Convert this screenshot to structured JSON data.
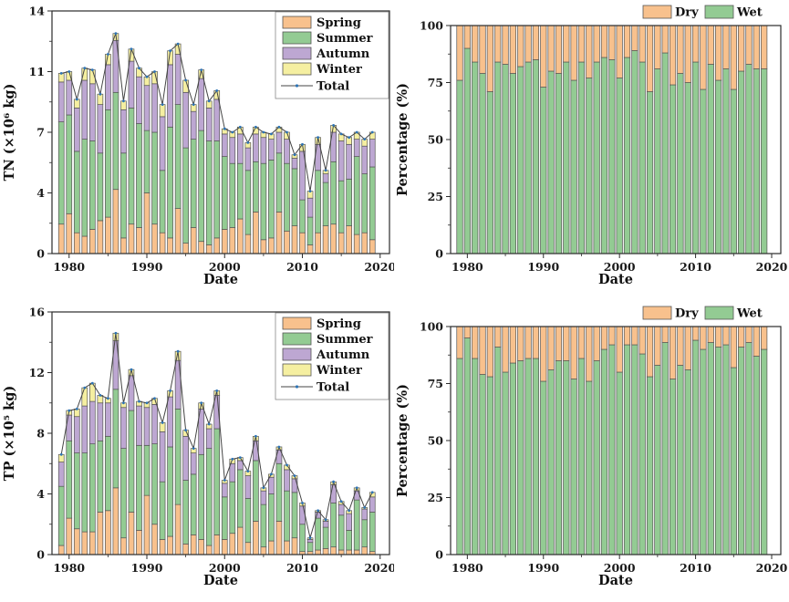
{
  "figure": {
    "background": "#ffffff",
    "palette": {
      "spring": "#f8c18d",
      "summer": "#93cb93",
      "autumn": "#bda7d2",
      "winter": "#f5efa1",
      "dry": "#f8c18d",
      "wet": "#93cb93",
      "bar_border": "#565656",
      "line": "#454545",
      "marker": "#2e74b5",
      "axis": "#2b2b2b",
      "text": "#1a1a1a"
    }
  },
  "chart_data": [
    {
      "id": "tn",
      "type": "bar",
      "stacked": true,
      "percent": false,
      "ylabel": "TN (×10⁶ kg)",
      "xlabel": "Date",
      "xlim": [
        1977.8,
        2021.2
      ],
      "ylim": [
        0,
        14
      ],
      "yticks": [
        0,
        3.5,
        7,
        10.5,
        14
      ],
      "ytick_labels": [
        "0",
        "4",
        "7",
        "11",
        "14"
      ],
      "yminor": [
        1.75,
        5.25,
        8.75,
        12.25
      ],
      "xticks": [
        1980,
        1990,
        2000,
        2010,
        2020
      ],
      "xminor": [
        1985,
        1995,
        2005,
        2015
      ],
      "legend_position": "inside-top-right",
      "line_label": "Total",
      "x": [
        1979,
        1980,
        1981,
        1982,
        1983,
        1984,
        1985,
        1986,
        1987,
        1988,
        1989,
        1990,
        1991,
        1992,
        1993,
        1994,
        1995,
        1996,
        1997,
        1998,
        1999,
        2000,
        2001,
        2002,
        2003,
        2004,
        2005,
        2006,
        2007,
        2008,
        2009,
        2010,
        2011,
        2012,
        2013,
        2014,
        2015,
        2016,
        2017,
        2018,
        2019
      ],
      "series": [
        {
          "name": "Spring",
          "color_key": "spring",
          "values": [
            1.7,
            2.3,
            1.2,
            1.0,
            1.4,
            1.9,
            2.1,
            3.7,
            0.9,
            1.7,
            1.5,
            3.5,
            1.7,
            1.2,
            0.9,
            2.6,
            0.6,
            1.5,
            0.7,
            0.5,
            0.9,
            1.4,
            1.5,
            2.0,
            1.1,
            2.4,
            0.8,
            0.9,
            2.4,
            1.3,
            1.6,
            1.2,
            0.5,
            1.2,
            1.6,
            1.7,
            1.2,
            1.6,
            1.1,
            1.2,
            0.8
          ]
        },
        {
          "name": "Summer",
          "color_key": "summer",
          "values": [
            5.9,
            5.7,
            4.7,
            5.6,
            5.1,
            3.9,
            6.2,
            5.6,
            4.9,
            6.7,
            6.0,
            3.6,
            5.3,
            3.6,
            6.4,
            6.0,
            5.5,
            5.1,
            6.4,
            6.0,
            5.6,
            4.2,
            3.7,
            3.2,
            3.7,
            2.9,
            4.4,
            4.5,
            3.4,
            3.9,
            3.3,
            1.9,
            1.6,
            3.6,
            2.5,
            3.6,
            3.0,
            2.7,
            4.5,
            3.4,
            4.2
          ]
        },
        {
          "name": "Autumn",
          "color_key": "autumn",
          "values": [
            2.3,
            2.0,
            2.5,
            3.4,
            3.3,
            2.8,
            2.6,
            3.0,
            2.5,
            2.7,
            2.7,
            2.6,
            2.8,
            3.1,
            3.6,
            2.9,
            3.2,
            1.6,
            3.0,
            1.9,
            2.4,
            1.3,
            1.5,
            1.7,
            1.3,
            1.6,
            1.5,
            1.2,
            1.2,
            1.4,
            0.6,
            2.8,
            1.1,
            1.5,
            0.5,
            1.7,
            2.3,
            2.0,
            1.0,
            1.6,
            1.6
          ]
        },
        {
          "name": "Winter",
          "color_key": "winter",
          "values": [
            0.5,
            0.5,
            0.5,
            0.7,
            0.8,
            0.6,
            0.6,
            0.4,
            0.5,
            0.7,
            0.5,
            0.5,
            0.7,
            0.7,
            0.8,
            0.6,
            0.7,
            0.4,
            0.5,
            0.4,
            0.5,
            0.3,
            0.3,
            0.4,
            0.3,
            0.4,
            0.3,
            0.3,
            0.3,
            0.4,
            0.2,
            0.4,
            0.4,
            0.4,
            0.2,
            0.4,
            0.4,
            0.4,
            0.4,
            0.4,
            0.4
          ]
        }
      ],
      "totals": [
        10.4,
        10.5,
        8.9,
        10.7,
        10.6,
        9.2,
        11.5,
        12.7,
        8.8,
        11.8,
        10.7,
        10.2,
        10.5,
        8.6,
        11.7,
        12.1,
        10.0,
        8.6,
        10.6,
        8.8,
        9.4,
        7.2,
        7.0,
        7.3,
        6.4,
        7.3,
        7.0,
        6.9,
        7.3,
        7.0,
        5.7,
        6.3,
        3.6,
        6.7,
        4.8,
        7.4,
        6.9,
        6.7,
        7.0,
        6.6,
        7.0
      ]
    },
    {
      "id": "tn_pct",
      "type": "bar",
      "stacked": true,
      "percent": true,
      "ylabel": "Percentage (%)",
      "xlabel": "Date",
      "xlim": [
        1977.8,
        2021.2
      ],
      "ylim": [
        0,
        100
      ],
      "yticks": [
        0,
        25,
        50,
        75,
        100
      ],
      "ytick_labels": [
        "0",
        "25",
        "50",
        "75",
        "100"
      ],
      "yminor": [
        12.5,
        37.5,
        62.5,
        87.5
      ],
      "xticks": [
        1980,
        1990,
        2000,
        2010,
        2020
      ],
      "xminor": [
        1985,
        1995,
        2005,
        2015
      ],
      "legend_position": "above-top-right",
      "legend": [
        {
          "label": "Dry",
          "color_key": "dry"
        },
        {
          "label": "Wet",
          "color_key": "wet"
        }
      ],
      "x": [
        1979,
        1980,
        1981,
        1982,
        1983,
        1984,
        1985,
        1986,
        1987,
        1988,
        1989,
        1990,
        1991,
        1992,
        1993,
        1994,
        1995,
        1996,
        1997,
        1998,
        1999,
        2000,
        2001,
        2002,
        2003,
        2004,
        2005,
        2006,
        2007,
        2008,
        2009,
        2010,
        2011,
        2012,
        2013,
        2014,
        2015,
        2016,
        2017,
        2018,
        2019
      ],
      "series": [
        {
          "name": "Wet",
          "color_key": "wet",
          "values": [
            76,
            90,
            84,
            79,
            71,
            84,
            83,
            79,
            82,
            84,
            85,
            73,
            80,
            79,
            84,
            76,
            84,
            77,
            84,
            86,
            85,
            77,
            86,
            89,
            84,
            71,
            81,
            88,
            74,
            79,
            75,
            84,
            72,
            83,
            76,
            81,
            72,
            80,
            83,
            81,
            81
          ]
        },
        {
          "name": "Dry",
          "color_key": "dry",
          "values": [
            24,
            10,
            16,
            21,
            29,
            16,
            17,
            21,
            18,
            16,
            15,
            27,
            20,
            21,
            16,
            24,
            16,
            23,
            16,
            14,
            15,
            23,
            14,
            11,
            16,
            29,
            19,
            12,
            26,
            21,
            25,
            16,
            28,
            17,
            24,
            19,
            28,
            20,
            17,
            19,
            19
          ]
        }
      ]
    },
    {
      "id": "tp",
      "type": "bar",
      "stacked": true,
      "percent": false,
      "ylabel": "TP (×10⁵ kg)",
      "xlabel": "Date",
      "xlim": [
        1977.8,
        2021.2
      ],
      "ylim": [
        0,
        16
      ],
      "yticks": [
        0,
        4,
        8,
        12,
        16
      ],
      "ytick_labels": [
        "0",
        "4",
        "8",
        "12",
        "16"
      ],
      "yminor": [
        2,
        6,
        10,
        14
      ],
      "xticks": [
        1980,
        1990,
        2000,
        2010,
        2020
      ],
      "xminor": [
        1985,
        1995,
        2005,
        2015
      ],
      "legend_position": "inside-top-right",
      "line_label": "Total",
      "x": [
        1979,
        1980,
        1981,
        1982,
        1983,
        1984,
        1985,
        1986,
        1987,
        1988,
        1989,
        1990,
        1991,
        1992,
        1993,
        1994,
        1995,
        1996,
        1997,
        1998,
        1999,
        2000,
        2001,
        2002,
        2003,
        2004,
        2005,
        2006,
        2007,
        2008,
        2009,
        2010,
        2011,
        2012,
        2013,
        2014,
        2015,
        2016,
        2017,
        2018,
        2019
      ],
      "series": [
        {
          "name": "Spring",
          "color_key": "spring",
          "values": [
            0.6,
            2.4,
            1.7,
            1.5,
            1.5,
            2.8,
            2.9,
            4.4,
            1.1,
            2.8,
            1.6,
            3.9,
            2.0,
            1.0,
            1.2,
            3.3,
            0.7,
            1.3,
            1.0,
            0.6,
            1.3,
            1.0,
            1.4,
            1.8,
            0.8,
            2.2,
            0.5,
            0.9,
            2.2,
            0.9,
            1.1,
            0.2,
            0.2,
            0.3,
            0.4,
            0.5,
            0.3,
            0.3,
            0.3,
            0.5,
            0.2
          ]
        },
        {
          "name": "Summer",
          "color_key": "summer",
          "values": [
            3.9,
            5.1,
            5.0,
            5.2,
            5.8,
            4.7,
            4.9,
            6.5,
            5.9,
            6.7,
            5.6,
            3.3,
            5.3,
            3.8,
            5.9,
            6.3,
            4.2,
            4.0,
            5.6,
            6.4,
            7.0,
            2.8,
            3.4,
            3.8,
            2.9,
            4.0,
            2.8,
            3.1,
            3.8,
            3.3,
            3.0,
            1.8,
            0.6,
            2.1,
            1.4,
            2.9,
            2.3,
            1.3,
            3.3,
            1.8,
            2.6
          ]
        },
        {
          "name": "Autumn",
          "color_key": "autumn",
          "values": [
            1.6,
            1.7,
            2.4,
            3.1,
            2.8,
            2.5,
            2.2,
            3.2,
            2.7,
            2.3,
            2.6,
            2.5,
            2.6,
            3.3,
            3.3,
            3.2,
            2.9,
            1.4,
            3.0,
            1.3,
            2.2,
            0.9,
            1.2,
            0.6,
            1.5,
            1.3,
            0.9,
            1.1,
            0.9,
            1.4,
            0.9,
            1.2,
            0.2,
            0.4,
            0.4,
            1.2,
            0.7,
            1.1,
            0.6,
            0.7,
            1.0
          ]
        },
        {
          "name": "Winter",
          "color_key": "winter",
          "values": [
            0.5,
            0.3,
            0.5,
            1.2,
            1.2,
            0.5,
            0.3,
            0.5,
            0.3,
            0.4,
            0.3,
            0.3,
            0.4,
            0.6,
            0.4,
            0.6,
            0.4,
            0.3,
            0.4,
            0.3,
            0.3,
            0.2,
            0.3,
            0.2,
            0.3,
            0.3,
            0.2,
            0.2,
            0.2,
            0.3,
            0.2,
            0.2,
            0.1,
            0.1,
            0.1,
            0.2,
            0.2,
            0.2,
            0.2,
            0.1,
            0.3
          ]
        }
      ],
      "totals": [
        6.6,
        9.5,
        9.6,
        11.0,
        11.3,
        10.5,
        10.3,
        14.6,
        10.0,
        12.2,
        10.1,
        10.0,
        10.3,
        8.7,
        10.8,
        13.4,
        8.2,
        7.0,
        10.0,
        8.6,
        10.8,
        4.9,
        6.3,
        6.4,
        5.5,
        7.8,
        4.4,
        5.3,
        7.1,
        5.9,
        5.2,
        3.4,
        1.1,
        2.9,
        2.3,
        4.8,
        3.5,
        2.9,
        4.4,
        3.1,
        4.1
      ]
    },
    {
      "id": "tp_pct",
      "type": "bar",
      "stacked": true,
      "percent": true,
      "ylabel": "Percentage (%)",
      "xlabel": "Date",
      "xlim": [
        1977.8,
        2021.2
      ],
      "ylim": [
        0,
        100
      ],
      "yticks": [
        0,
        25,
        50,
        75,
        100
      ],
      "ytick_labels": [
        "0",
        "25",
        "50",
        "75",
        "100"
      ],
      "yminor": [
        12.5,
        37.5,
        62.5,
        87.5
      ],
      "xticks": [
        1980,
        1990,
        2000,
        2010,
        2020
      ],
      "xminor": [
        1985,
        1995,
        2005,
        2015
      ],
      "legend_position": "above-top-right",
      "legend": [
        {
          "label": "Dry",
          "color_key": "dry"
        },
        {
          "label": "Wet",
          "color_key": "wet"
        }
      ],
      "x": [
        1979,
        1980,
        1981,
        1982,
        1983,
        1984,
        1985,
        1986,
        1987,
        1988,
        1989,
        1990,
        1991,
        1992,
        1993,
        1994,
        1995,
        1996,
        1997,
        1998,
        1999,
        2000,
        2001,
        2002,
        2003,
        2004,
        2005,
        2006,
        2007,
        2008,
        2009,
        2010,
        2011,
        2012,
        2013,
        2014,
        2015,
        2016,
        2017,
        2018,
        2019
      ],
      "series": [
        {
          "name": "Wet",
          "color_key": "wet",
          "values": [
            86,
            95,
            86,
            79,
            78,
            91,
            80,
            84,
            85,
            86,
            86,
            76,
            81,
            85,
            85,
            77,
            86,
            76,
            85,
            90,
            92,
            80,
            92,
            92,
            88,
            78,
            83,
            93,
            77,
            83,
            81,
            94,
            90,
            93,
            91,
            92,
            82,
            91,
            93,
            87,
            90
          ]
        },
        {
          "name": "Dry",
          "color_key": "dry",
          "values": [
            14,
            5,
            14,
            21,
            22,
            9,
            20,
            16,
            15,
            14,
            14,
            24,
            19,
            15,
            15,
            23,
            14,
            24,
            15,
            10,
            8,
            20,
            8,
            8,
            12,
            22,
            17,
            7,
            23,
            17,
            19,
            6,
            10,
            7,
            9,
            8,
            18,
            9,
            7,
            13,
            10
          ]
        }
      ]
    }
  ]
}
